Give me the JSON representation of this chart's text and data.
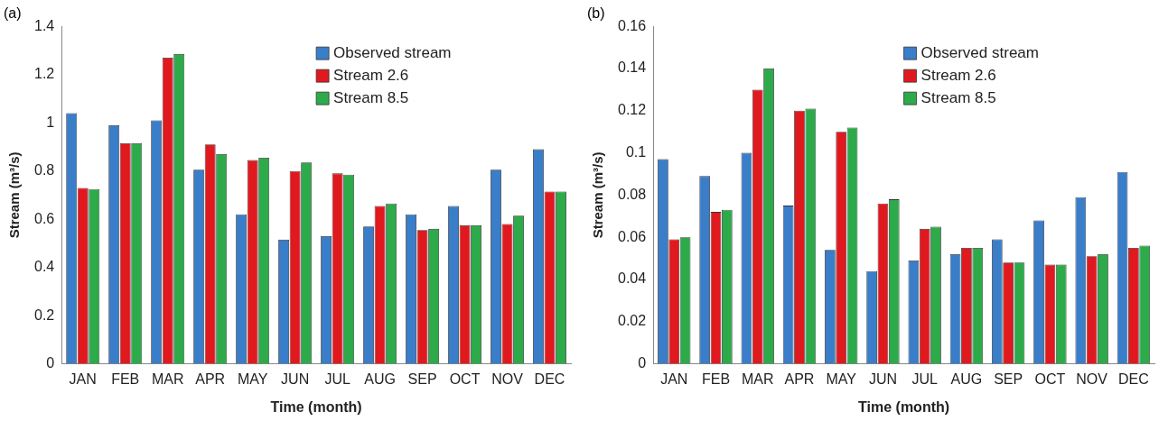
{
  "chart_data": [
    {
      "type": "bar",
      "title": "(a)",
      "xlabel": "Time (month)",
      "ylabel": "Stream (m³/s)",
      "categories": [
        "JAN",
        "FEB",
        "MAR",
        "APR",
        "MAY",
        "JUN",
        "JUL",
        "AUG",
        "SEP",
        "OCT",
        "NOV",
        "DEC"
      ],
      "series": [
        {
          "name": "Observed stream",
          "color": "#3a7dc9",
          "values": [
            1.04,
            0.99,
            1.01,
            0.805,
            0.62,
            0.515,
            0.53,
            0.57,
            0.62,
            0.655,
            0.805,
            0.89
          ]
        },
        {
          "name": "Stream 2.6",
          "color": "#e0191f",
          "values": [
            0.73,
            0.915,
            1.27,
            0.91,
            0.845,
            0.8,
            0.79,
            0.655,
            0.555,
            0.575,
            0.58,
            0.715
          ]
        },
        {
          "name": "Stream 8.5",
          "color": "#2daa4a",
          "values": [
            0.725,
            0.915,
            1.285,
            0.87,
            0.855,
            0.835,
            0.785,
            0.665,
            0.56,
            0.575,
            0.615,
            0.715
          ]
        }
      ],
      "ylim": [
        0,
        1.4
      ],
      "yticks": [
        0,
        0.2,
        0.4,
        0.6,
        0.8,
        1,
        1.2,
        1.4
      ],
      "grid": false,
      "legend": "top right"
    },
    {
      "type": "bar",
      "title": "(b)",
      "xlabel": "Time (month)",
      "ylabel": "Stream (m³/s)",
      "categories": [
        "JAN",
        "FEB",
        "MAR",
        "APR",
        "MAY",
        "JUN",
        "JUL",
        "AUG",
        "SEP",
        "OCT",
        "NOV",
        "DEC"
      ],
      "series": [
        {
          "name": "Observed stream",
          "color": "#3a7dc9",
          "values": [
            0.097,
            0.089,
            0.1,
            0.075,
            0.054,
            0.044,
            0.049,
            0.052,
            0.059,
            0.068,
            0.079,
            0.091
          ]
        },
        {
          "name": "Stream 2.6",
          "color": "#e0191f",
          "values": [
            0.059,
            0.072,
            0.13,
            0.12,
            0.11,
            0.076,
            0.064,
            0.055,
            0.048,
            0.047,
            0.051,
            0.055
          ]
        },
        {
          "name": "Stream 8.5",
          "color": "#2daa4a",
          "values": [
            0.06,
            0.073,
            0.14,
            0.121,
            0.112,
            0.078,
            0.065,
            0.055,
            0.048,
            0.047,
            0.052,
            0.056
          ]
        }
      ],
      "ylim": [
        0,
        0.16
      ],
      "yticks": [
        0,
        0.02,
        0.04,
        0.06,
        0.08,
        0.1,
        0.12,
        0.14,
        0.16
      ],
      "grid": false,
      "legend": "top right"
    }
  ]
}
